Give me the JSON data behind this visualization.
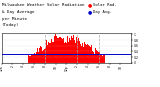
{
  "title_left": "Milwaukee Weather Solar Radiation",
  "title_right": "& Day Average",
  "title_line3": "per Minute",
  "title_line4": "(Today)",
  "title_fontsize": 3.5,
  "bg_color": "#ffffff",
  "bar_color": "#ff0000",
  "avg_line_color": "#0000cc",
  "avg_value": 0.32,
  "ylim": [
    0,
    1.05
  ],
  "xlim": [
    0,
    144
  ],
  "n_points": 144,
  "vline_positions": [
    48,
    84,
    108
  ],
  "vline_color": "#aaaaaa",
  "tick_color": "#000000",
  "grid_color": "#cccccc",
  "ytick_labels": [
    "1",
    "0.8",
    "0.6",
    "0.4",
    "0.2",
    "0"
  ],
  "ytick_values": [
    1.0,
    0.8,
    0.6,
    0.4,
    0.2,
    0.0
  ],
  "legend_solar_color": "#ff0000",
  "legend_avg_color": "#0000cc"
}
